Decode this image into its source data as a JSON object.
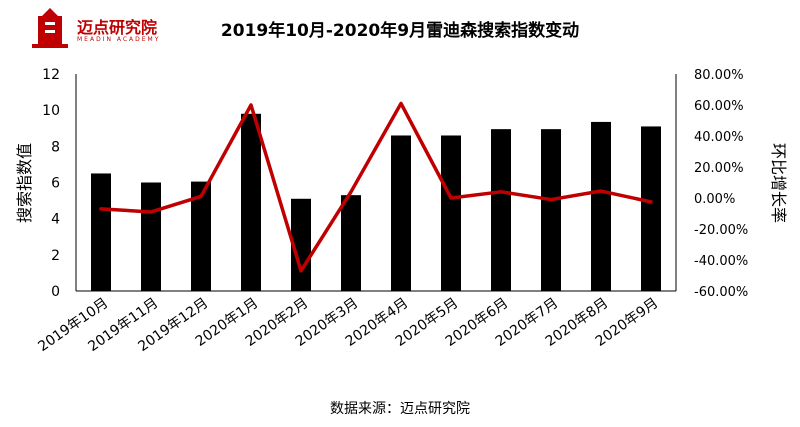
{
  "brand": {
    "name": "迈点研究院",
    "subtitle": "MEADIN ACADEMY",
    "color": "#c00000"
  },
  "source_note": "数据来源：迈点研究院",
  "chart_data": {
    "type": "bar",
    "title": "2019年10月-2020年9月雷迪森搜索指数变动",
    "categories": [
      "2019年10月",
      "2019年11月",
      "2019年12月",
      "2020年1月",
      "2020年2月",
      "2020年3月",
      "2020年4月",
      "2020年5月",
      "2020年6月",
      "2020年7月",
      "2020年8月",
      "2020年9月"
    ],
    "ylabel": "搜索指数值",
    "y2label": "环比增长率",
    "ylim": [
      0,
      12
    ],
    "y2lim": [
      -0.6,
      0.8
    ],
    "yticks": [
      "0",
      "2",
      "4",
      "6",
      "8",
      "10",
      "12"
    ],
    "y2ticks": [
      "-60.00%",
      "-40.00%",
      "-20.00%",
      "0.00%",
      "20.00%",
      "40.00%",
      "60.00%",
      "80.00%"
    ],
    "series": [
      {
        "type": "bar",
        "axis": "left",
        "color": "#000000",
        "values": [
          6.5,
          6.0,
          6.05,
          9.8,
          5.1,
          5.3,
          8.6,
          8.6,
          8.95,
          8.95,
          9.35,
          9.1
        ]
      },
      {
        "type": "line",
        "axis": "right",
        "color": "#c00000",
        "values": [
          -0.07,
          -0.09,
          0.01,
          0.6,
          -0.47,
          0.04,
          0.61,
          0.0,
          0.04,
          -0.01,
          0.045,
          -0.025
        ]
      }
    ],
    "grid": false
  }
}
